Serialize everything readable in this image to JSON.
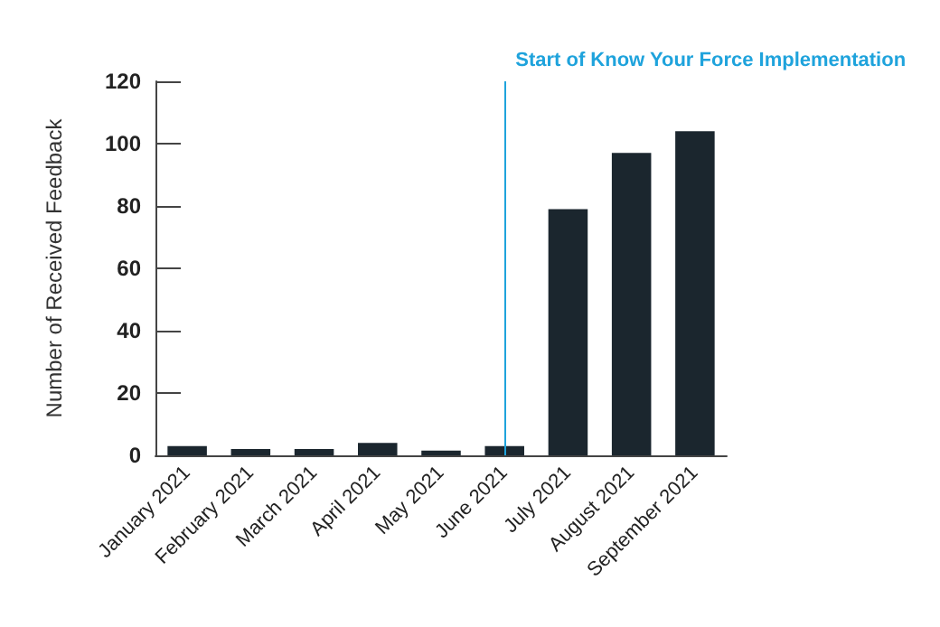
{
  "chart_data": {
    "type": "bar",
    "ylabel": "Number of Received Feedback",
    "categories": [
      "January 2021",
      "February 2021",
      "March 2021",
      "April 2021",
      "May 2021",
      "June 2021",
      "July 2021",
      "August 2021",
      "September 2021"
    ],
    "values": [
      3,
      2,
      2,
      4,
      1.5,
      3,
      79,
      97,
      104
    ],
    "color": "#1b262e",
    "ylim": [
      0,
      120
    ],
    "yticks": [
      0,
      20,
      40,
      60,
      80,
      100,
      120
    ],
    "grid": false,
    "ref_lines": [
      {
        "axis": "x",
        "value": "June 2021",
        "label": "Start of Know Your Force Implementation",
        "color": "#1fa3dc"
      }
    ]
  }
}
